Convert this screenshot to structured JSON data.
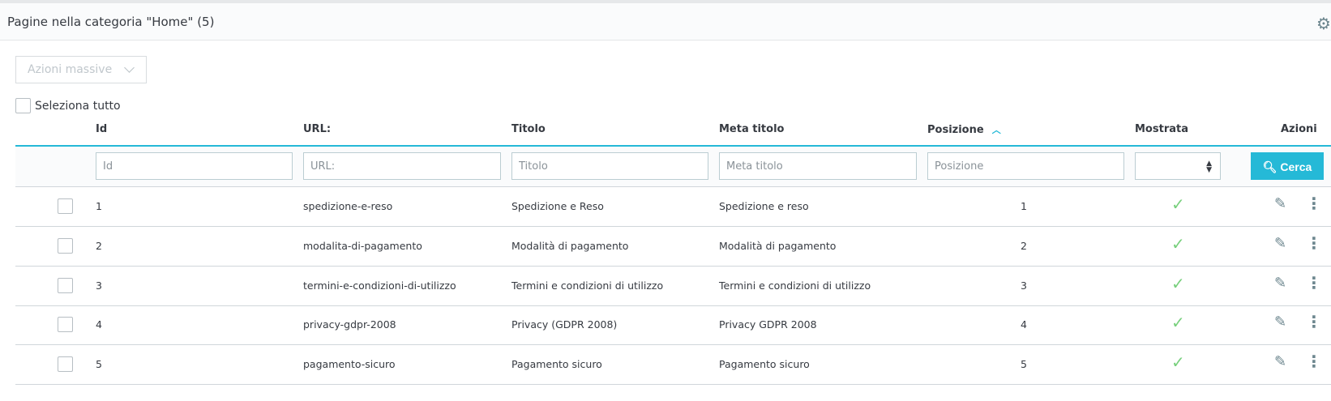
{
  "header": {
    "title": "Pagine nella categoria \"Home\" (5)",
    "settings_icon": "gear-icon"
  },
  "bulk_actions": {
    "label": "Azioni massive"
  },
  "select_all": {
    "label": "Seleziona tutto"
  },
  "columns": {
    "id": "Id",
    "url": "URL:",
    "title": "Titolo",
    "meta_title": "Meta titolo",
    "position": "Posizione",
    "shown": "Mostrata",
    "actions": "Azioni"
  },
  "sort": {
    "column": "position",
    "direction": "ascending"
  },
  "filters": {
    "id": "Id",
    "url": "URL:",
    "title": "Titolo",
    "meta_title": "Meta titolo",
    "position": "Posizione",
    "shown": "",
    "search_label": "Cerca"
  },
  "colors": {
    "accent": "#25b9d7",
    "check": "#78d07d"
  },
  "rows": [
    {
      "id": "1",
      "url": "spedizione-e-reso",
      "title": "Spedizione e Reso",
      "meta_title": "Spedizione e reso",
      "position": "1",
      "shown": true
    },
    {
      "id": "2",
      "url": "modalita-di-pagamento",
      "title": "Modalità di pagamento",
      "meta_title": "Modalità di pagamento",
      "position": "2",
      "shown": true
    },
    {
      "id": "3",
      "url": "termini-e-condizioni-di-utilizzo",
      "title": "Termini e condizioni di utilizzo",
      "meta_title": "Termini e condizioni di utilizzo",
      "position": "3",
      "shown": true
    },
    {
      "id": "4",
      "url": "privacy-gdpr-2008",
      "title": "Privacy (GDPR 2008)",
      "meta_title": "Privacy GDPR 2008",
      "position": "4",
      "shown": true
    },
    {
      "id": "5",
      "url": "pagamento-sicuro",
      "title": "Pagamento sicuro",
      "meta_title": "Pagamento sicuro",
      "position": "5",
      "shown": true
    }
  ]
}
